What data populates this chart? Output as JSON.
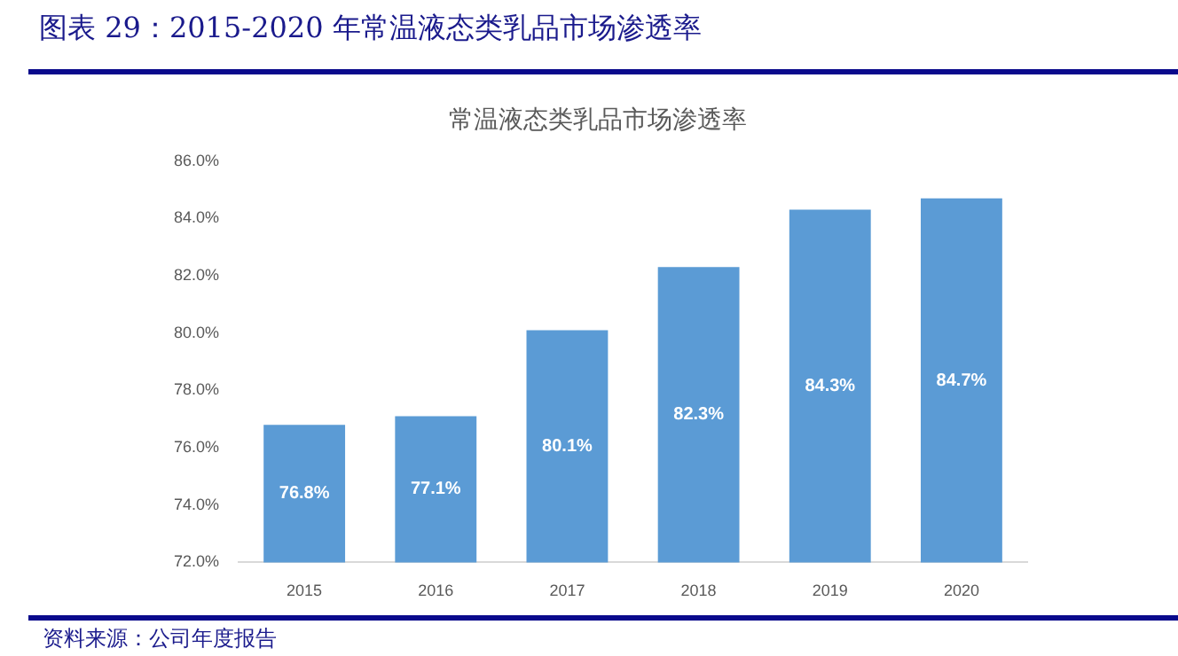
{
  "chart_data": {
    "type": "bar",
    "title": "图表 29：2015-2020 年常温液态类乳品市场渗透率",
    "subtitle": "常温液态类乳品市场渗透率",
    "categories": [
      "2015",
      "2016",
      "2017",
      "2018",
      "2019",
      "2020"
    ],
    "values": [
      76.8,
      77.1,
      80.1,
      82.3,
      84.3,
      84.7
    ],
    "color": "#5b9bd5",
    "ylim": [
      72,
      86
    ],
    "yticks": [
      {
        "value": 72,
        "label": "72.0%"
      },
      {
        "value": 74,
        "label": "74.0%"
      },
      {
        "value": 76,
        "label": "76.0%"
      },
      {
        "value": 78,
        "label": "78.0%"
      },
      {
        "value": 80,
        "label": "80.0%"
      },
      {
        "value": 82,
        "label": "82.0%"
      },
      {
        "value": 84,
        "label": "84.0%"
      },
      {
        "value": 86,
        "label": "86.0%"
      }
    ],
    "value_labels": [
      "76.8%",
      "77.1%",
      "80.1%",
      "82.3%",
      "84.3%",
      "84.7%"
    ],
    "annotations": [
      "资料来源：公司年度报告"
    ]
  }
}
